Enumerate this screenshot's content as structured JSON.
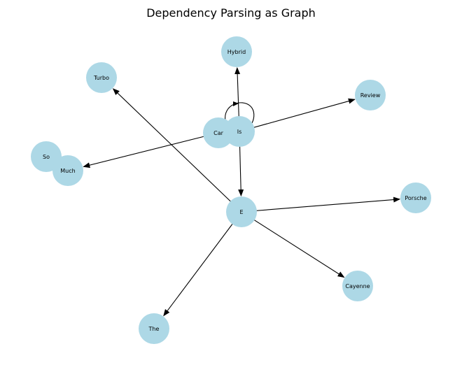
{
  "title": "Dependency Parsing as Graph",
  "node_color": "#add8e6",
  "edge_color": "#000000",
  "nodes": [
    {
      "id": "hybrid",
      "label": "Hybrid"
    },
    {
      "id": "turbo",
      "label": "Turbo"
    },
    {
      "id": "review",
      "label": "Review"
    },
    {
      "id": "car",
      "label": "Car"
    },
    {
      "id": "is",
      "label": "Is"
    },
    {
      "id": "so",
      "label": "So"
    },
    {
      "id": "much",
      "label": "Much"
    },
    {
      "id": "e",
      "label": "E"
    },
    {
      "id": "porsche",
      "label": "Porsche"
    },
    {
      "id": "cayenne",
      "label": "Cayenne"
    },
    {
      "id": "the",
      "label": "The"
    }
  ],
  "edges": [
    {
      "from": "is",
      "to": "hybrid"
    },
    {
      "from": "is",
      "to": "review"
    },
    {
      "from": "is",
      "to": "e"
    },
    {
      "from": "car",
      "to": "much"
    },
    {
      "from": "car",
      "to": "is"
    },
    {
      "from": "e",
      "to": "turbo"
    },
    {
      "from": "e",
      "to": "porsche"
    },
    {
      "from": "e",
      "to": "cayenne"
    },
    {
      "from": "e",
      "to": "the"
    }
  ]
}
